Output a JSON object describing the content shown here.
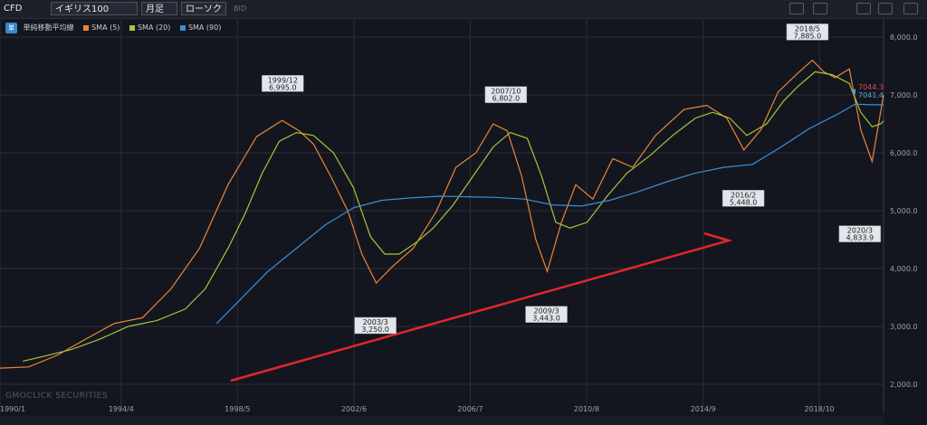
{
  "toolbar": {
    "market": "CFD",
    "symbol": "イギリス100",
    "period": "月足",
    "chart_style": "ローソク",
    "price_type": "BID",
    "icons": [
      "line-type-icon",
      "add-chart-icon",
      "camera-icon",
      "print-icon",
      "window-icon"
    ]
  },
  "legend": {
    "tag": "単",
    "indicator": "単純移動平均線",
    "items": [
      {
        "label": "SMA (5)",
        "color": "#e8863a"
      },
      {
        "label": "SMA (20)",
        "color": "#a6c43a"
      },
      {
        "label": "SMA (90)",
        "color": "#3a8fd6"
      }
    ]
  },
  "price_labels": {
    "close": "7044.3",
    "sma": "7041.4",
    "close_color": "#e2434b",
    "sma_color": "#5aa0e0"
  },
  "watermark": "GMOCLICK SECURITIES",
  "chart_data": {
    "type": "line",
    "title": "",
    "ylim": [
      1850,
      8200
    ],
    "xlim": [
      1990.0,
      2021.0
    ],
    "yticks": [
      "2,000.0",
      "3,000.0",
      "4,000.0",
      "5,000.0",
      "6,000.0",
      "7,000.0",
      "8,000.0"
    ],
    "ytick_values": [
      2000,
      3000,
      4000,
      5000,
      6000,
      7000,
      8000
    ],
    "xticks": [
      "1990/1",
      "1994/4",
      "1998/5",
      "2002/6",
      "2006/7",
      "2010/8",
      "2014/9",
      "2018/10"
    ],
    "xtick_values": [
      1990.0,
      1994.25,
      1998.33,
      2002.42,
      2006.5,
      2010.58,
      2014.67,
      2018.75
    ],
    "grid": true,
    "series": [
      {
        "name": "SMA (5)",
        "color": "#e8863a",
        "x": [
          1990.0,
          1991.0,
          1992.0,
          1993.0,
          1994.0,
          1995.0,
          1996.0,
          1997.0,
          1998.0,
          1999.0,
          1999.9,
          2000.5,
          2001.0,
          2001.6,
          2002.2,
          2002.7,
          2003.2,
          2003.8,
          2004.5,
          2005.3,
          2006.0,
          2006.7,
          2007.3,
          2007.8,
          2008.3,
          2008.8,
          2009.2,
          2009.7,
          2010.2,
          2010.8,
          2011.5,
          2012.2,
          2013.0,
          2014.0,
          2014.8,
          2015.5,
          2016.1,
          2016.7,
          2017.3,
          2018.0,
          2018.5,
          2018.9,
          2019.3,
          2019.8,
          2020.2,
          2020.6,
          2021.0
        ],
        "values": [
          2280,
          2300,
          2500,
          2780,
          3050,
          3150,
          3650,
          4350,
          5450,
          6280,
          6560,
          6380,
          6150,
          5600,
          5000,
          4250,
          3750,
          4050,
          4350,
          4980,
          5750,
          6000,
          6500,
          6380,
          5600,
          4500,
          3950,
          4800,
          5450,
          5200,
          5900,
          5750,
          6300,
          6750,
          6820,
          6600,
          6050,
          6400,
          7050,
          7380,
          7600,
          7400,
          7300,
          7450,
          6400,
          5850,
          7000
        ]
      },
      {
        "name": "SMA (20)",
        "color": "#a6c43a",
        "x": [
          1990.8,
          1991.5,
          1992.5,
          1993.5,
          1994.5,
          1995.5,
          1996.5,
          1997.2,
          1998.0,
          1998.6,
          1999.2,
          1999.8,
          2000.4,
          2001.0,
          2001.7,
          2002.4,
          2003.0,
          2003.5,
          2004.0,
          2004.6,
          2005.2,
          2005.9,
          2006.6,
          2007.3,
          2007.9,
          2008.5,
          2009.0,
          2009.5,
          2010.0,
          2010.6,
          2011.3,
          2012.0,
          2012.8,
          2013.6,
          2014.4,
          2015.0,
          2015.6,
          2016.2,
          2016.9,
          2017.5,
          2018.0,
          2018.6,
          2019.2,
          2019.8,
          2020.2,
          2020.6,
          2020.9,
          2021.0
        ],
        "values": [
          2400,
          2480,
          2600,
          2780,
          3000,
          3100,
          3300,
          3650,
          4350,
          4950,
          5650,
          6200,
          6350,
          6300,
          6000,
          5400,
          4550,
          4250,
          4250,
          4450,
          4700,
          5100,
          5600,
          6100,
          6350,
          6250,
          5600,
          4800,
          4700,
          4800,
          5250,
          5650,
          5950,
          6300,
          6600,
          6700,
          6600,
          6300,
          6500,
          6900,
          7150,
          7400,
          7350,
          7200,
          6700,
          6450,
          6500,
          6550
        ]
      },
      {
        "name": "SMA (90)",
        "color": "#3a8fd6",
        "x": [
          1997.6,
          1998.4,
          1999.4,
          2000.4,
          2001.4,
          2002.4,
          2003.4,
          2004.4,
          2005.4,
          2006.4,
          2007.4,
          2008.4,
          2009.4,
          2010.4,
          2011.4,
          2012.4,
          2013.4,
          2014.4,
          2015.4,
          2016.4,
          2017.4,
          2018.4,
          2019.4,
          2020.0,
          2020.6,
          2021.0
        ],
        "values": [
          3050,
          3450,
          3950,
          4350,
          4750,
          5050,
          5180,
          5220,
          5250,
          5240,
          5230,
          5200,
          5100,
          5080,
          5180,
          5330,
          5500,
          5650,
          5750,
          5800,
          6100,
          6420,
          6670,
          6840,
          6830,
          6830
        ]
      }
    ],
    "annotations": [
      {
        "date": "1999/12",
        "value": "6,995.0",
        "x": 1999.92,
        "y": 6995
      },
      {
        "date": "2003/3",
        "value": "3,250.0",
        "x": 2003.17,
        "y": 3250
      },
      {
        "date": "2007/10",
        "value": "6,802.0",
        "x": 2007.75,
        "y": 6802
      },
      {
        "date": "2009/3",
        "value": "3,443.0",
        "x": 2009.17,
        "y": 3443
      },
      {
        "date": "2016/2",
        "value": "5,448.0",
        "x": 2016.08,
        "y": 5448
      },
      {
        "date": "2018/5",
        "value": "7,885.0",
        "x": 2018.33,
        "y": 7885
      },
      {
        "date": "2020/3",
        "value": "4,833.9",
        "x": 2020.17,
        "y": 4833.9
      }
    ]
  }
}
